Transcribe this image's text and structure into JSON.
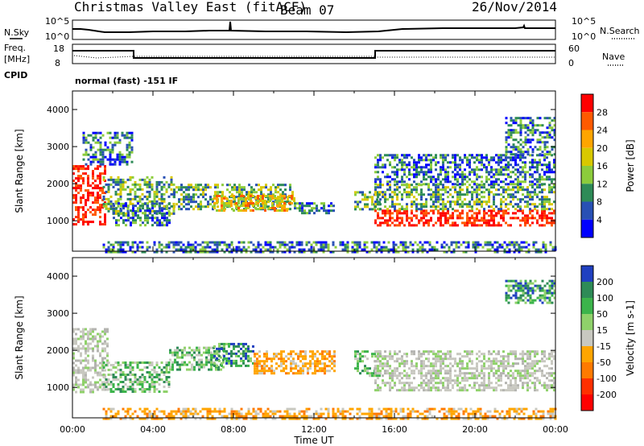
{
  "header": {
    "title": "Christmas Valley East (fitACF)",
    "beam": "Beam 07",
    "date": "26/Nov/2014"
  },
  "status_panels": {
    "nsky_label": "N.Sky",
    "nsky_ticks": [
      "10^5",
      "10^0"
    ],
    "nsearch_label": "N.Search",
    "nsearch_ticks": [
      "10^5",
      "10^0"
    ],
    "freq_label": "Freq.",
    "freq_unit": "[MHz]",
    "freq_ticks": [
      "18",
      "8"
    ],
    "nave_label": "Nave",
    "nave_ticks": [
      "60",
      "0"
    ],
    "cpid_label": "CPID",
    "cpid_text": "normal (fast) -151 IF"
  },
  "chart_data": [
    {
      "type": "heatmap",
      "name": "power",
      "ylabel": "Slant Range [km]",
      "yticks": [
        "4000",
        "3000",
        "2000",
        "1000"
      ],
      "ylim": [
        180,
        4500
      ],
      "xlim": [
        0,
        24
      ],
      "colorbar_label": "Power [dB]",
      "colorbar_ticks": [
        "28",
        "24",
        "20",
        "16",
        "12",
        "8",
        "4"
      ],
      "colorbar_colors": [
        "#ff0000",
        "#ff5a00",
        "#ffa500",
        "#d8c800",
        "#8ccc3c",
        "#2e8b57",
        "#2850b4",
        "#0000ff"
      ],
      "regions": [
        {
          "t0": 0.0,
          "t1": 1.6,
          "r0": 900,
          "r1": 2500,
          "level": "high"
        },
        {
          "t0": 0.5,
          "t1": 3.0,
          "r0": 2500,
          "r1": 3400,
          "level": "low"
        },
        {
          "t0": 1.5,
          "t1": 5.0,
          "r0": 1200,
          "r1": 2200,
          "level": "mid"
        },
        {
          "t0": 2.0,
          "t1": 4.8,
          "r0": 900,
          "r1": 1500,
          "level": "low"
        },
        {
          "t0": 5.0,
          "t1": 11.0,
          "r0": 1300,
          "r1": 2000,
          "level": "mid"
        },
        {
          "t0": 7.0,
          "t1": 11.0,
          "r0": 1300,
          "r1": 1700,
          "level": "mid-high"
        },
        {
          "t0": 11.0,
          "t1": 13.0,
          "r0": 1200,
          "r1": 1500,
          "level": "low"
        },
        {
          "t0": 14.0,
          "t1": 15.3,
          "r0": 1300,
          "r1": 1800,
          "level": "mid"
        },
        {
          "t0": 15.0,
          "t1": 24.0,
          "r0": 900,
          "r1": 1300,
          "level": "high"
        },
        {
          "t0": 15.0,
          "t1": 24.0,
          "r0": 1300,
          "r1": 2000,
          "level": "mid"
        },
        {
          "t0": 15.0,
          "t1": 24.0,
          "r0": 2000,
          "r1": 2800,
          "level": "low"
        },
        {
          "t0": 21.5,
          "t1": 24.0,
          "r0": 2800,
          "r1": 3800,
          "level": "low"
        },
        {
          "t0": 1.5,
          "t1": 24.0,
          "r0": 180,
          "r1": 450,
          "level": "low"
        }
      ]
    },
    {
      "type": "heatmap",
      "name": "velocity",
      "ylabel": "Slant Range [km]",
      "yticks": [
        "4000",
        "3000",
        "2000",
        "1000"
      ],
      "ylim": [
        180,
        4500
      ],
      "xlim": [
        0,
        24
      ],
      "colorbar_label": "Velocity [m s-1]",
      "colorbar_ticks": [
        "200",
        "100",
        "50",
        "15",
        "-15",
        "-50",
        "-100",
        "-200"
      ],
      "colorbar_colors": [
        "#2040c0",
        "#2e8b57",
        "#3cb44b",
        "#8fd16a",
        "#c8c8c0",
        "#ffa500",
        "#ff7a00",
        "#ff3000",
        "#ff0000"
      ],
      "regions": [
        {
          "t0": 0.0,
          "t1": 1.8,
          "r0": 900,
          "r1": 2600,
          "level": "zero"
        },
        {
          "t0": 1.5,
          "t1": 4.8,
          "r0": 900,
          "r1": 1700,
          "level": "pos"
        },
        {
          "t0": 4.8,
          "t1": 7.5,
          "r0": 1500,
          "r1": 2100,
          "level": "pos"
        },
        {
          "t0": 7.0,
          "t1": 9.0,
          "r0": 1600,
          "r1": 2200,
          "level": "pos-high"
        },
        {
          "t0": 9.0,
          "t1": 13.0,
          "r0": 1400,
          "r1": 2000,
          "level": "neg"
        },
        {
          "t0": 14.0,
          "t1": 15.3,
          "r0": 1300,
          "r1": 2000,
          "level": "pos"
        },
        {
          "t0": 15.0,
          "t1": 24.0,
          "r0": 900,
          "r1": 2000,
          "level": "zero"
        },
        {
          "t0": 21.5,
          "t1": 24.0,
          "r0": 3300,
          "r1": 3900,
          "level": "pos-high"
        },
        {
          "t0": 1.5,
          "t1": 24.0,
          "r0": 180,
          "r1": 450,
          "level": "neg"
        }
      ]
    }
  ],
  "time_axis": {
    "ticks": [
      "00:00",
      "04:00",
      "08:00",
      "12:00",
      "16:00",
      "20:00",
      "00:00"
    ],
    "label": "Time UT"
  }
}
